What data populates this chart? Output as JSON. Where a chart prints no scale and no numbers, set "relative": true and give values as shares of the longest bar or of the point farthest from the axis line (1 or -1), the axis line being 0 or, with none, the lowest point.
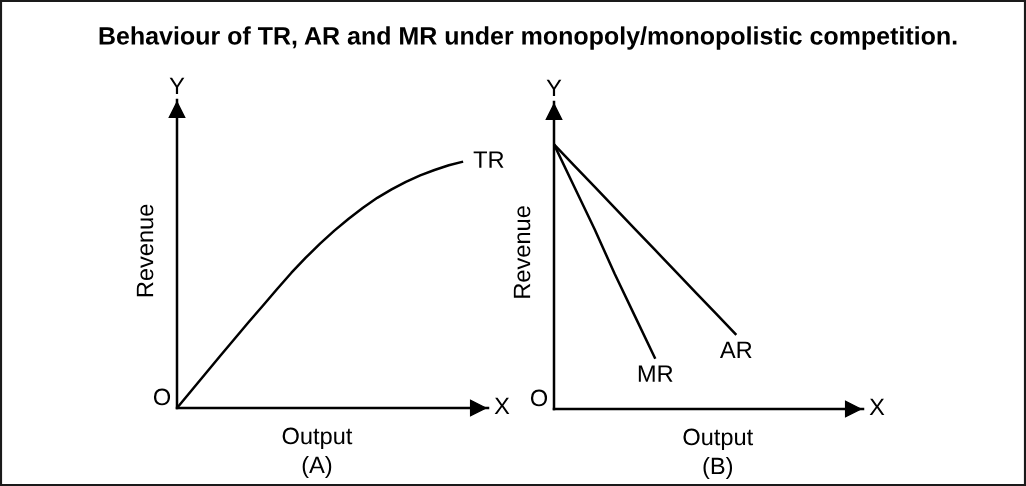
{
  "chart_data": [
    {
      "type": "line",
      "title": "Behaviour of TR, AR and MR under monopoly/monopolistic competition.",
      "xlabel": "Output",
      "ylabel": "Revenue",
      "relative": true,
      "categories": [
        null,
        null,
        null,
        null,
        null,
        null,
        null,
        null,
        null,
        null,
        null,
        null,
        null,
        null,
        null,
        null,
        null,
        null,
        null,
        null,
        null
      ],
      "series": [
        {
          "name": "TR",
          "color": "#000000",
          "values": [
            0,
            0.07,
            0.14,
            0.21,
            0.279,
            0.348,
            0.415,
            0.483,
            0.549,
            0.61,
            0.667,
            0.72,
            0.768,
            0.813,
            0.853,
            0.887,
            0.918,
            0.944,
            0.966,
            0.985,
            1
          ]
        }
      ],
      "annotations": [
        "Y",
        "X",
        "(A)",
        "O"
      ]
    },
    {
      "type": "line",
      "xlabel": "Output",
      "ylabel": "Revenue",
      "relative": true,
      "categories": [
        null,
        null,
        null,
        null,
        null,
        null,
        null,
        null,
        null,
        null
      ],
      "series": [
        {
          "name": "AR",
          "color": "#000000",
          "values": [
            1,
            0.92,
            0.84,
            0.76,
            0.68,
            0.6,
            0.52,
            0.44,
            0.36,
            0.28
          ]
        },
        {
          "name": "MR",
          "color": "#000000",
          "values": [
            1,
            0.84,
            0.68,
            0.51,
            0.35,
            0.19,
            null,
            null,
            null,
            null
          ]
        }
      ],
      "annotations": [
        "Y",
        "X",
        "(B)",
        "O"
      ]
    }
  ]
}
